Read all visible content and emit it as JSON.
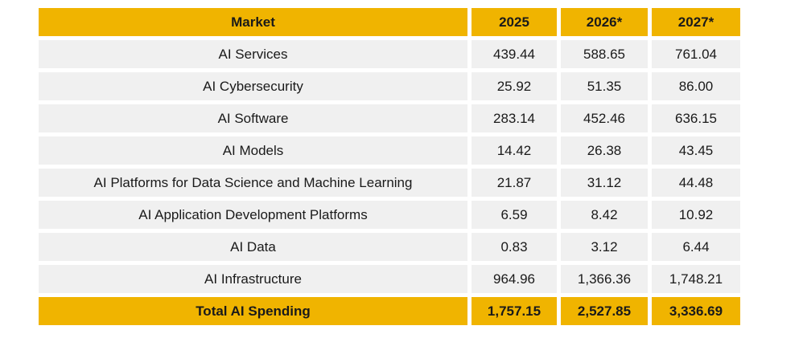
{
  "header": {
    "market": "Market",
    "y2025": "2025",
    "y2026": "2026*",
    "y2027": "2027*"
  },
  "rows": [
    {
      "market": "AI Services",
      "y2025": "439.44",
      "y2026": "588.65",
      "y2027": "761.04"
    },
    {
      "market": "AI Cybersecurity",
      "y2025": "25.92",
      "y2026": "51.35",
      "y2027": "86.00"
    },
    {
      "market": "AI Software",
      "y2025": "283.14",
      "y2026": "452.46",
      "y2027": "636.15"
    },
    {
      "market": "AI Models",
      "y2025": "14.42",
      "y2026": "26.38",
      "y2027": "43.45"
    },
    {
      "market": "AI Platforms for Data Science and Machine Learning",
      "y2025": "21.87",
      "y2026": "31.12",
      "y2027": "44.48"
    },
    {
      "market": "AI Application Development Platforms",
      "y2025": "6.59",
      "y2026": "8.42",
      "y2027": "10.92"
    },
    {
      "market": "AI Data",
      "y2025": "0.83",
      "y2026": "3.12",
      "y2027": "6.44"
    },
    {
      "market": "AI Infrastructure",
      "y2025": "964.96",
      "y2026": "1,366.36",
      "y2027": "1,748.21"
    }
  ],
  "total": {
    "market": "Total AI Spending",
    "y2025": "1,757.15",
    "y2026": "2,527.85",
    "y2027": "3,336.69"
  },
  "colors": {
    "accent": "#f0b400",
    "row_bg": "#f0f0f0"
  }
}
